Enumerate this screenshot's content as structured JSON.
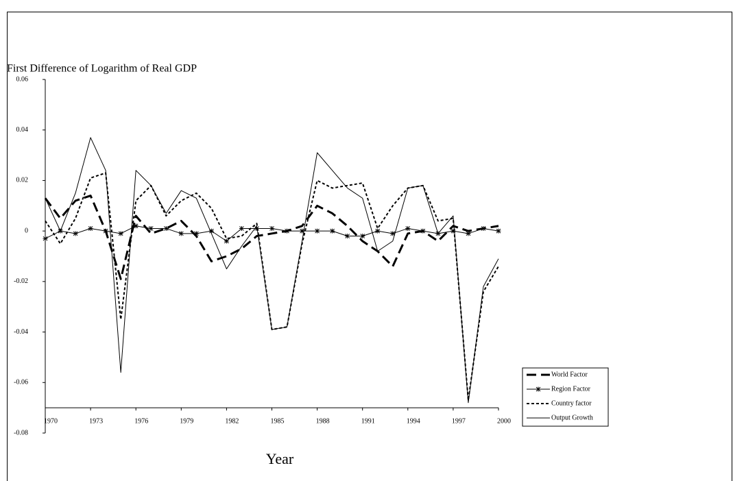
{
  "chart_data": {
    "type": "line",
    "subtitle": "First Difference of Logarithm of Real GDP",
    "x_label": "Year",
    "x": [
      1970,
      1971,
      1972,
      1973,
      1974,
      1975,
      1976,
      1977,
      1978,
      1979,
      1980,
      1981,
      1982,
      1983,
      1984,
      1985,
      1986,
      1987,
      1988,
      1989,
      1990,
      1991,
      1992,
      1993,
      1994,
      1995,
      1996,
      1997,
      1998,
      1999,
      2000
    ],
    "xlim": [
      1970,
      2000
    ],
    "xticks": [
      1970,
      1973,
      1976,
      1979,
      1982,
      1985,
      1988,
      1991,
      1994,
      1997,
      2000
    ],
    "ylim": [
      -0.08,
      0.06
    ],
    "yticks": [
      0.06,
      0.04,
      0.02,
      0,
      -0.02,
      -0.04,
      -0.06,
      -0.08
    ],
    "x_axis_crosses": -0.07,
    "legend": "lower right",
    "series": [
      {
        "name": "World Factor",
        "color": "#000000",
        "style": "long-dash",
        "values": [
          0.013,
          0.005,
          0.012,
          0.014,
          0.0,
          -0.019,
          0.006,
          -0.001,
          0.001,
          0.004,
          -0.002,
          -0.012,
          -0.01,
          -0.007,
          -0.002,
          -0.001,
          0.0,
          0.002,
          0.01,
          0.007,
          0.002,
          -0.004,
          -0.008,
          -0.014,
          -0.001,
          0.0,
          -0.004,
          0.002,
          0.0,
          0.001,
          0.002
        ]
      },
      {
        "name": "Region Factor",
        "color": "#000000",
        "style": "solid-star",
        "values": [
          -0.003,
          0.0,
          -0.001,
          0.001,
          0.0,
          -0.001,
          0.002,
          0.001,
          0.001,
          -0.001,
          -0.001,
          0.0,
          -0.004,
          0.001,
          0.001,
          0.001,
          0.0,
          0.0,
          0.0,
          0.0,
          -0.002,
          -0.002,
          0.0,
          -0.001,
          0.001,
          0.0,
          -0.001,
          0.0,
          -0.001,
          0.001,
          0.0
        ]
      },
      {
        "name": "Country factor",
        "color": "#000000",
        "style": "short-dash",
        "values": [
          0.004,
          -0.005,
          0.005,
          0.021,
          0.023,
          -0.035,
          0.012,
          0.018,
          0.006,
          0.012,
          0.015,
          0.009,
          -0.003,
          -0.002,
          0.003,
          -0.039,
          -0.038,
          -0.005,
          0.02,
          0.017,
          0.018,
          0.019,
          0.001,
          0.01,
          0.017,
          0.018,
          0.004,
          0.005,
          -0.067,
          -0.024,
          -0.014
        ]
      },
      {
        "name": "Output Growth",
        "color": "#000000",
        "style": "thin-solid",
        "values": [
          0.013,
          0.0,
          0.015,
          0.037,
          0.024,
          -0.056,
          0.024,
          0.018,
          0.007,
          0.016,
          0.013,
          -0.001,
          -0.015,
          -0.006,
          0.002,
          -0.039,
          -0.038,
          -0.004,
          0.031,
          0.024,
          0.017,
          0.013,
          -0.008,
          -0.004,
          0.017,
          0.018,
          -0.001,
          0.006,
          -0.068,
          -0.022,
          -0.011
        ]
      }
    ]
  }
}
